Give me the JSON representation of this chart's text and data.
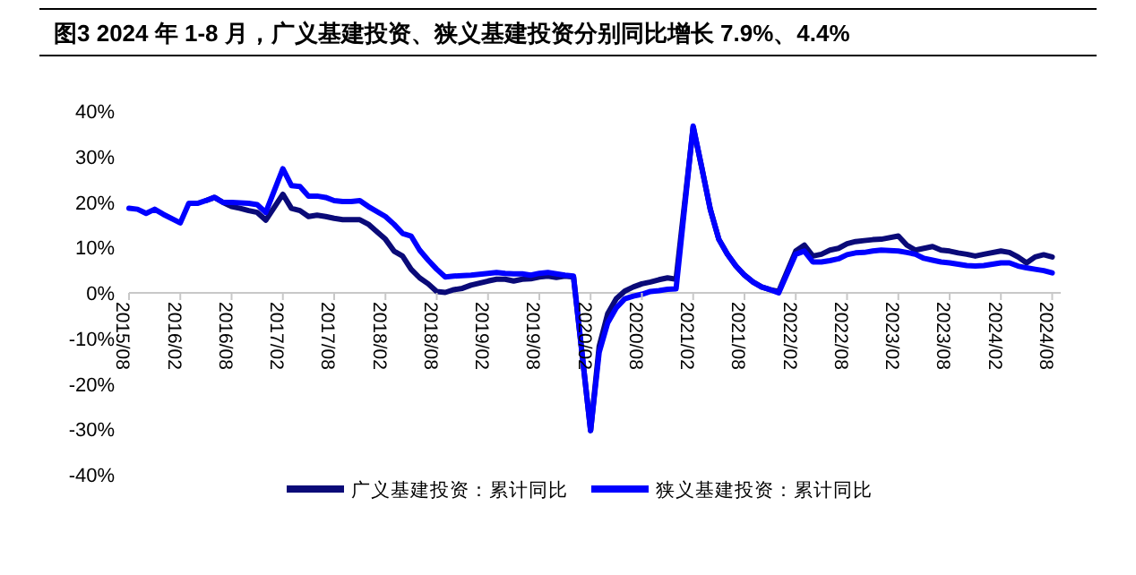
{
  "chart_data": {
    "type": "line",
    "title": "图3  2024 年 1-8 月，广义基建投资、狭义基建投资分别同比增长 7.9%、4.4%",
    "x": [
      "2015-08",
      "2015-09",
      "2015-10",
      "2015-11",
      "2015-12",
      "2016-02",
      "2016-03",
      "2016-04",
      "2016-05",
      "2016-06",
      "2016-07",
      "2016-08",
      "2016-09",
      "2016-10",
      "2016-11",
      "2016-12",
      "2017-02",
      "2017-03",
      "2017-04",
      "2017-05",
      "2017-06",
      "2017-07",
      "2017-08",
      "2017-09",
      "2017-10",
      "2017-11",
      "2017-12",
      "2018-02",
      "2018-03",
      "2018-04",
      "2018-05",
      "2018-06",
      "2018-07",
      "2018-08",
      "2018-09",
      "2018-10",
      "2018-11",
      "2018-12",
      "2019-02",
      "2019-03",
      "2019-04",
      "2019-05",
      "2019-06",
      "2019-07",
      "2019-08",
      "2019-09",
      "2019-10",
      "2019-11",
      "2019-12",
      "2020-02",
      "2020-03",
      "2020-04",
      "2020-05",
      "2020-06",
      "2020-07",
      "2020-08",
      "2020-09",
      "2020-10",
      "2020-11",
      "2020-12",
      "2021-02",
      "2021-03",
      "2021-04",
      "2021-05",
      "2021-06",
      "2021-07",
      "2021-08",
      "2021-09",
      "2021-10",
      "2021-11",
      "2021-12",
      "2022-02",
      "2022-03",
      "2022-04",
      "2022-05",
      "2022-06",
      "2022-07",
      "2022-08",
      "2022-09",
      "2022-10",
      "2022-11",
      "2022-12",
      "2023-02",
      "2023-03",
      "2023-04",
      "2023-05",
      "2023-06",
      "2023-07",
      "2023-08",
      "2023-09",
      "2023-10",
      "2023-11",
      "2023-12",
      "2024-02",
      "2024-03",
      "2024-04",
      "2024-05",
      "2024-06",
      "2024-07",
      "2024-08"
    ],
    "series": [
      {
        "name": "广义基建投资：累计同比",
        "color": "#0a0a78",
        "values": [
          null,
          null,
          null,
          null,
          null,
          null,
          null,
          null,
          20.3,
          21.0,
          19.9,
          19.0,
          18.6,
          18.1,
          17.7,
          16.0,
          21.7,
          18.6,
          18.1,
          16.8,
          17.1,
          16.8,
          16.4,
          16.1,
          16.1,
          16.1,
          15.1,
          11.8,
          9.2,
          8.1,
          5.2,
          3.3,
          2.0,
          0.3,
          0.1,
          0.7,
          1.0,
          1.7,
          2.6,
          3.0,
          3.0,
          2.6,
          3.0,
          3.1,
          3.5,
          3.7,
          3.4,
          3.7,
          3.5,
          -30.3,
          -11.8,
          -4.6,
          -1.3,
          0.4,
          1.3,
          2.0,
          2.4,
          2.9,
          3.3,
          3.0,
          36.5,
          27.6,
          18.4,
          11.8,
          8.5,
          5.9,
          3.9,
          2.4,
          1.3,
          0.7,
          0.3,
          9.2,
          10.5,
          8.1,
          8.5,
          9.4,
          9.8,
          10.8,
          11.3,
          11.5,
          11.7,
          11.8,
          12.5,
          10.5,
          9.4,
          9.8,
          10.2,
          9.4,
          9.2,
          8.8,
          8.5,
          8.1,
          8.5,
          9.2,
          8.9,
          7.9,
          6.6,
          7.9,
          8.4,
          7.9
        ]
      },
      {
        "name": "狭义基建投资：累计同比",
        "color": "#0000ff",
        "values": [
          18.6,
          18.4,
          17.5,
          18.4,
          17.3,
          15.4,
          19.7,
          19.7,
          20.3,
          21.0,
          19.9,
          19.9,
          19.8,
          19.7,
          19.4,
          17.7,
          27.3,
          23.6,
          23.4,
          21.3,
          21.3,
          21.0,
          20.3,
          20.1,
          20.1,
          20.3,
          19.0,
          16.8,
          15.1,
          13.1,
          12.5,
          9.4,
          7.2,
          5.2,
          3.5,
          3.7,
          3.8,
          3.9,
          4.3,
          4.5,
          4.3,
          4.2,
          4.2,
          3.9,
          4.3,
          4.5,
          4.2,
          3.9,
          3.7,
          -30.3,
          -13.1,
          -6.6,
          -3.3,
          -1.3,
          -0.7,
          -0.3,
          0.3,
          0.5,
          0.8,
          0.9,
          36.7,
          27.6,
          18.4,
          11.8,
          8.5,
          5.9,
          3.9,
          2.4,
          1.3,
          0.7,
          0.0,
          8.5,
          9.2,
          6.8,
          6.8,
          7.1,
          7.5,
          8.4,
          8.8,
          8.9,
          9.2,
          9.4,
          9.2,
          8.9,
          8.5,
          7.6,
          7.2,
          6.8,
          6.6,
          6.3,
          6.0,
          5.9,
          6.0,
          6.6,
          6.6,
          5.9,
          5.5,
          5.2,
          4.9,
          4.4
        ]
      }
    ],
    "xlim": [
      "2015-08",
      "2024-09"
    ],
    "xticks": [
      {
        "value": "2015-08",
        "label": "2015/08"
      },
      {
        "value": "2016-02",
        "label": "2016/02"
      },
      {
        "value": "2016-08",
        "label": "2016/08"
      },
      {
        "value": "2017-02",
        "label": "2017/02"
      },
      {
        "value": "2017-08",
        "label": "2017/08"
      },
      {
        "value": "2018-02",
        "label": "2018/02"
      },
      {
        "value": "2018-08",
        "label": "2018/08"
      },
      {
        "value": "2019-02",
        "label": "2019/02"
      },
      {
        "value": "2019-08",
        "label": "2019/08"
      },
      {
        "value": "2020-02",
        "label": "2020/02"
      },
      {
        "value": "2020-08",
        "label": "2020/08"
      },
      {
        "value": "2021-02",
        "label": "2021/02"
      },
      {
        "value": "2021-08",
        "label": "2021/08"
      },
      {
        "value": "2022-02",
        "label": "2022/02"
      },
      {
        "value": "2022-08",
        "label": "2022/08"
      },
      {
        "value": "2023-02",
        "label": "2023/02"
      },
      {
        "value": "2023-08",
        "label": "2023/08"
      },
      {
        "value": "2024-02",
        "label": "2024/02"
      },
      {
        "value": "2024-08",
        "label": "2024/08"
      }
    ],
    "ylim": [
      -40,
      40
    ],
    "yticks": [
      {
        "value": -40,
        "label": "-40%"
      },
      {
        "value": -30,
        "label": "-30%"
      },
      {
        "value": -20,
        "label": "-20%"
      },
      {
        "value": -10,
        "label": "-10%"
      },
      {
        "value": 0,
        "label": "0%"
      },
      {
        "value": 10,
        "label": "10%"
      },
      {
        "value": 20,
        "label": "20%"
      },
      {
        "value": 30,
        "label": "30%"
      },
      {
        "value": 40,
        "label": "40%"
      }
    ],
    "legend": "bottom",
    "grid": false,
    "marker": "none",
    "line_style": "solid"
  }
}
